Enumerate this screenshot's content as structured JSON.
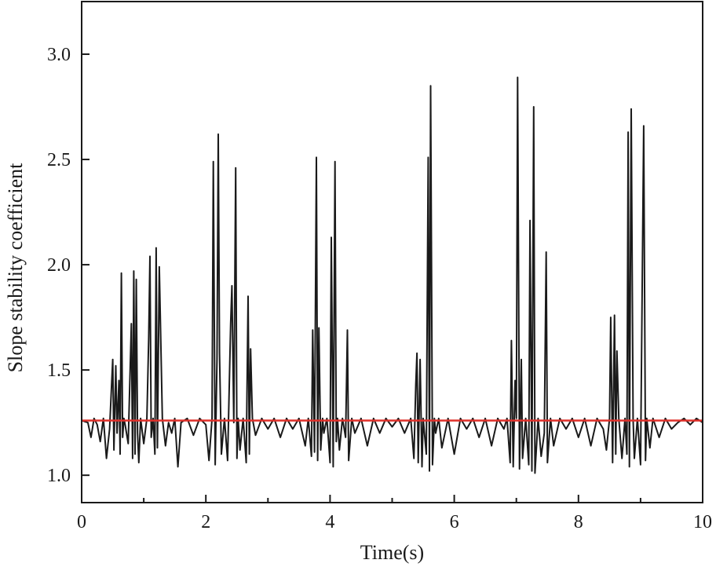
{
  "chart_data": {
    "type": "line",
    "title": "",
    "xlabel": "Time(s)",
    "ylabel": "Slope stability coefficient",
    "xlim": [
      0,
      10
    ],
    "ylim": [
      0.87,
      3.25
    ],
    "x_ticks": [
      0,
      2,
      4,
      6,
      8,
      10
    ],
    "x_tick_labels": [
      "0",
      "2",
      "4",
      "6",
      "8",
      "10"
    ],
    "x_minor_ticks": [
      1,
      3,
      5,
      7,
      9
    ],
    "y_ticks": [
      1.0,
      1.5,
      2.0,
      2.5,
      3.0
    ],
    "y_tick_labels": [
      "1.0",
      "1.5",
      "2.0",
      "2.5",
      "3.0"
    ],
    "grid": false,
    "legend": "none",
    "series": [
      {
        "color": "#1a1a1a",
        "x": [
          0,
          0.1,
          0.15,
          0.2,
          0.25,
          0.3,
          0.35,
          0.4,
          0.45,
          0.5,
          0.52,
          0.55,
          0.57,
          0.6,
          0.62,
          0.64,
          0.66,
          0.68,
          0.7,
          0.75,
          0.8,
          0.82,
          0.84,
          0.86,
          0.88,
          0.9,
          0.92,
          0.95,
          1.0,
          1.05,
          1.08,
          1.1,
          1.12,
          1.15,
          1.18,
          1.2,
          1.22,
          1.25,
          1.3,
          1.35,
          1.4,
          1.45,
          1.5,
          1.55,
          1.6,
          1.7,
          1.8,
          1.9,
          2.0,
          2.05,
          2.1,
          2.12,
          2.15,
          2.18,
          2.2,
          2.22,
          2.25,
          2.3,
          2.35,
          2.4,
          2.42,
          2.45,
          2.48,
          2.5,
          2.52,
          2.55,
          2.6,
          2.65,
          2.68,
          2.7,
          2.72,
          2.75,
          2.8,
          2.9,
          3.0,
          3.1,
          3.2,
          3.3,
          3.4,
          3.5,
          3.6,
          3.65,
          3.7,
          3.72,
          3.75,
          3.78,
          3.8,
          3.82,
          3.85,
          3.88,
          3.9,
          3.95,
          4.0,
          4.02,
          4.05,
          4.08,
          4.1,
          4.12,
          4.15,
          4.2,
          4.25,
          4.28,
          4.3,
          4.35,
          4.4,
          4.5,
          4.6,
          4.7,
          4.8,
          4.9,
          5.0,
          5.1,
          5.2,
          5.3,
          5.35,
          5.38,
          5.4,
          5.42,
          5.45,
          5.48,
          5.5,
          5.55,
          5.58,
          5.6,
          5.62,
          5.65,
          5.68,
          5.7,
          5.75,
          5.8,
          5.9,
          6.0,
          6.1,
          6.2,
          6.3,
          6.4,
          6.5,
          6.6,
          6.7,
          6.8,
          6.85,
          6.9,
          6.92,
          6.95,
          6.98,
          7.0,
          7.02,
          7.05,
          7.08,
          7.1,
          7.15,
          7.2,
          7.22,
          7.25,
          7.28,
          7.3,
          7.35,
          7.4,
          7.45,
          7.48,
          7.5,
          7.55,
          7.6,
          7.7,
          7.8,
          7.9,
          8.0,
          8.1,
          8.2,
          8.3,
          8.4,
          8.45,
          8.5,
          8.52,
          8.55,
          8.58,
          8.6,
          8.62,
          8.65,
          8.7,
          8.75,
          8.78,
          8.8,
          8.82,
          8.85,
          8.88,
          8.9,
          8.95,
          9.0,
          9.05,
          9.08,
          9.1,
          9.15,
          9.2,
          9.3,
          9.4,
          9.5,
          9.6,
          9.7,
          9.8,
          9.9,
          10.0
        ],
        "y": [
          1.26,
          1.25,
          1.18,
          1.27,
          1.24,
          1.16,
          1.27,
          1.08,
          1.22,
          1.55,
          1.12,
          1.52,
          1.2,
          1.45,
          1.1,
          1.96,
          1.18,
          1.27,
          1.24,
          1.15,
          1.72,
          1.08,
          1.97,
          1.1,
          1.93,
          1.2,
          1.06,
          1.27,
          1.15,
          1.27,
          1.65,
          2.04,
          1.18,
          1.27,
          1.1,
          2.08,
          1.13,
          1.99,
          1.27,
          1.14,
          1.25,
          1.2,
          1.27,
          1.04,
          1.25,
          1.27,
          1.19,
          1.27,
          1.24,
          1.07,
          1.27,
          2.49,
          1.05,
          1.55,
          2.62,
          1.58,
          1.1,
          1.27,
          1.07,
          1.72,
          1.9,
          1.25,
          2.46,
          1.08,
          1.27,
          1.12,
          1.27,
          1.06,
          1.85,
          1.1,
          1.6,
          1.27,
          1.19,
          1.27,
          1.22,
          1.27,
          1.18,
          1.27,
          1.22,
          1.27,
          1.14,
          1.27,
          1.09,
          1.69,
          1.11,
          2.51,
          1.07,
          1.7,
          1.12,
          1.27,
          1.2,
          1.27,
          1.06,
          2.13,
          1.04,
          2.49,
          1.16,
          1.27,
          1.12,
          1.27,
          1.18,
          1.69,
          1.07,
          1.27,
          1.2,
          1.27,
          1.14,
          1.27,
          1.2,
          1.27,
          1.23,
          1.27,
          1.2,
          1.27,
          1.08,
          1.43,
          1.58,
          1.06,
          1.55,
          1.04,
          1.27,
          1.1,
          2.51,
          1.02,
          2.85,
          1.05,
          1.27,
          1.2,
          1.27,
          1.13,
          1.27,
          1.1,
          1.27,
          1.22,
          1.27,
          1.18,
          1.27,
          1.14,
          1.27,
          1.22,
          1.27,
          1.06,
          1.64,
          1.04,
          1.45,
          1.27,
          2.89,
          1.03,
          1.55,
          1.08,
          1.27,
          1.05,
          2.21,
          1.02,
          2.75,
          1.01,
          1.27,
          1.09,
          1.2,
          2.06,
          1.06,
          1.27,
          1.14,
          1.27,
          1.22,
          1.27,
          1.18,
          1.27,
          1.14,
          1.27,
          1.22,
          1.12,
          1.27,
          1.75,
          1.06,
          1.76,
          1.1,
          1.59,
          1.27,
          1.08,
          1.27,
          1.1,
          2.63,
          1.04,
          2.74,
          1.27,
          1.08,
          1.27,
          1.05,
          2.66,
          1.07,
          1.27,
          1.13,
          1.27,
          1.18,
          1.27,
          1.22,
          1.25,
          1.27,
          1.24,
          1.27,
          1.25
        ]
      },
      {
        "color": "#e0302a",
        "x": [
          0,
          10
        ],
        "y": [
          1.26,
          1.26
        ]
      }
    ]
  }
}
